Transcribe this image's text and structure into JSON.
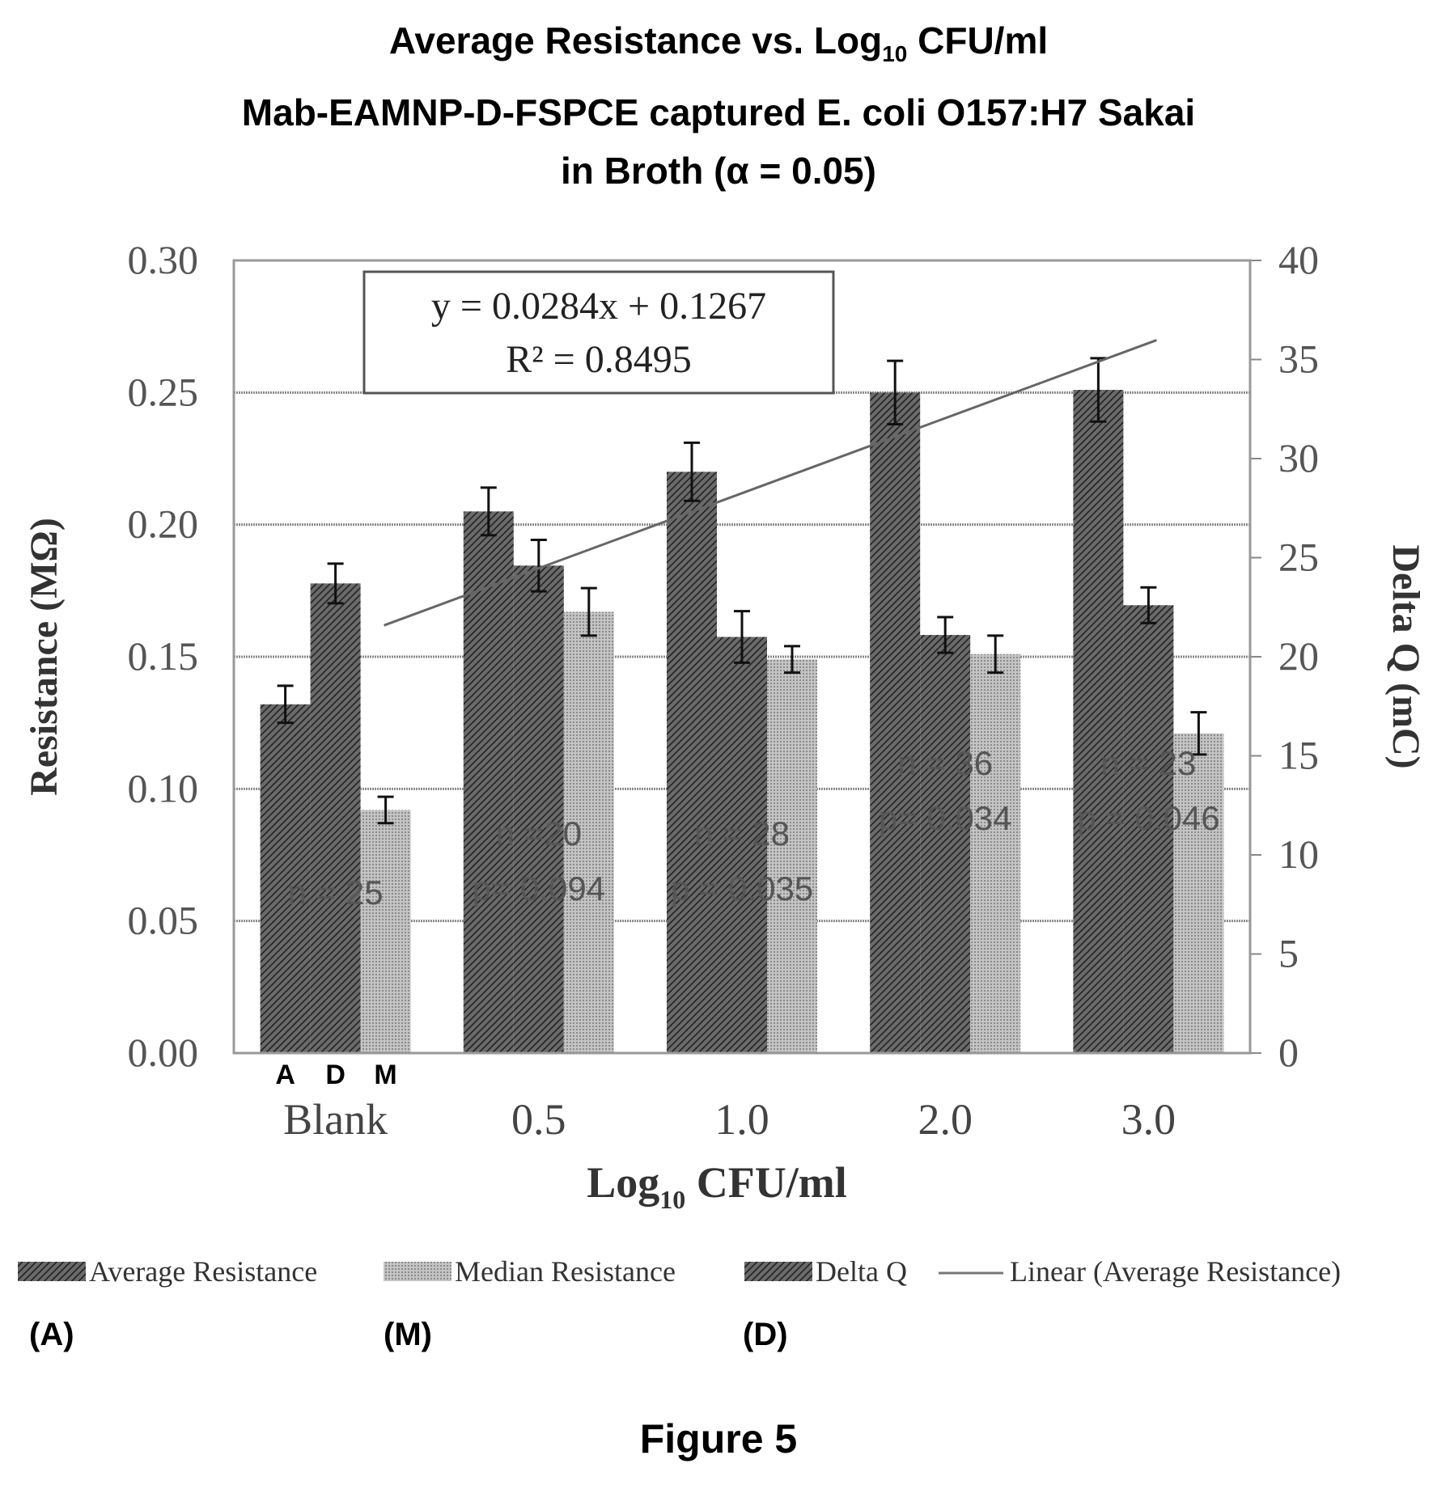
{
  "chart_data": {
    "type": "bar",
    "title_lines": {
      "l1_main": "Average Resistance vs. Log",
      "l1_sub": "10",
      "l1_tail": " CFU/ml",
      "l2": "Mab-EAMNP-D-FSPCE captured E. coli O157:H7 Sakai",
      "l3": "in Broth (α = 0.05)"
    },
    "categories": [
      "Blank",
      "0.5",
      "1.0",
      "2.0",
      "3.0"
    ],
    "bar_group_labels": [
      "A",
      "D",
      "M"
    ],
    "xlabel_main": "Log",
    "xlabel_sub": "10",
    "xlabel_tail": " CFU/ml",
    "ylabel_left": "Resistance (MΩ)",
    "ylabel_right": "Delta Q (mC)",
    "ylim_left": [
      0,
      0.3
    ],
    "ylim_right": [
      0,
      40
    ],
    "yticks_left": [
      "0.00",
      "0.05",
      "0.10",
      "0.15",
      "0.20",
      "0.25",
      "0.30"
    ],
    "yticks_right": [
      "0",
      "5",
      "10",
      "15",
      "20",
      "25",
      "30",
      "35",
      "40"
    ],
    "grid": true,
    "series": [
      {
        "name": "Average Resistance",
        "axis": "left",
        "pattern": "hatch-dark",
        "values": [
          0.132,
          0.205,
          0.22,
          0.25,
          0.251
        ],
        "errors": [
          0.007,
          0.009,
          0.011,
          0.012,
          0.012
        ]
      },
      {
        "name": "Median Resistance",
        "axis": "left",
        "pattern": "dots-light",
        "values": [
          0.092,
          0.167,
          0.149,
          0.151,
          0.121
        ],
        "errors": [
          0.005,
          0.009,
          0.005,
          0.007,
          0.008
        ]
      },
      {
        "name": "Delta Q",
        "axis": "right",
        "pattern": "hatch-dark",
        "values": [
          23.7,
          24.6,
          21.0,
          21.1,
          22.6
        ],
        "errors": [
          1.0,
          1.3,
          1.3,
          0.9,
          0.9
        ]
      }
    ],
    "trendline": {
      "name": "Linear (Average Resistance)",
      "equation": "y = 0.0284x + 0.1267",
      "r2": "R² = 0.8495",
      "slope": 0.0284,
      "intercept": 0.1267
    },
    "annotations": [
      {
        "category": "Blank",
        "n": "n = 25",
        "p": ""
      },
      {
        "category": "0.5",
        "n": "n =20",
        "p": "p= 0.094"
      },
      {
        "category": "1.0",
        "n": "n = 28",
        "p": "p = 0.035"
      },
      {
        "category": "2.0",
        "n": "n = 36",
        "p": "p= 0.034"
      },
      {
        "category": "3.0",
        "n": "n = 23",
        "p": "p = 0.046"
      }
    ],
    "legend_position": "bottom",
    "panel_labels": [
      "(A)",
      "(M)",
      "(D)"
    ]
  },
  "figure_caption": "Figure 5",
  "colors": {
    "bar_dark": "#4a4a4a",
    "bar_light": "#b8b8b8",
    "frame": "#888888",
    "text": "#000000"
  }
}
